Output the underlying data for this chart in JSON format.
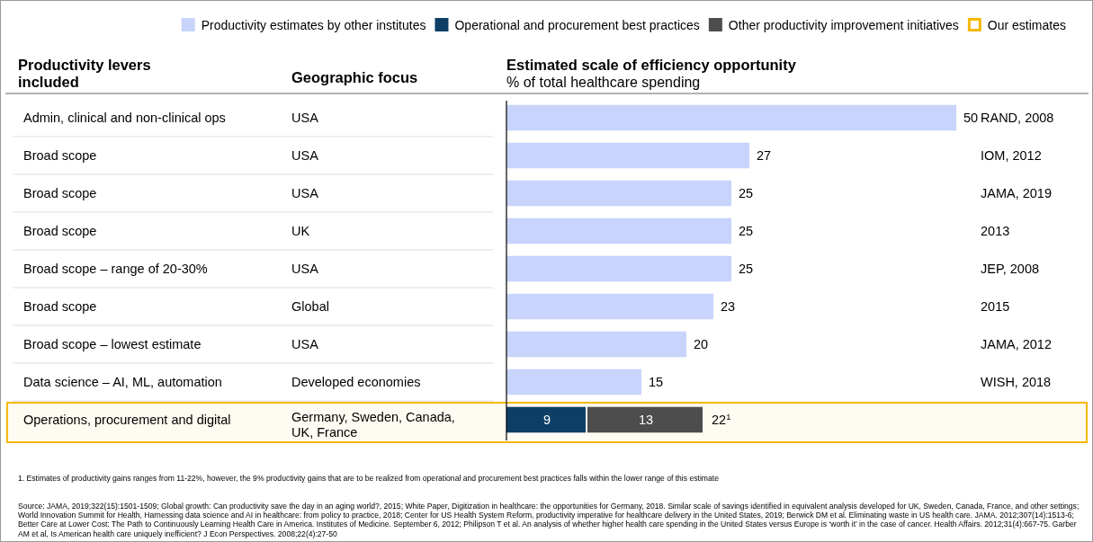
{
  "chart_data": {
    "type": "bar",
    "orientation": "horizontal",
    "stacked": true,
    "title": "Estimated scale of efficiency opportunity",
    "subtitle": "% of total healthcare spending",
    "ylabel": "Productivity levers included",
    "y2label": "Geographic focus",
    "categories": [
      "Admin, clinical and non-clinical ops",
      "Broad scope",
      "Broad scope",
      "Broad scope",
      "Broad scope – range of 20-30%",
      "Broad scope",
      "Broad scope – lowest estimate",
      "Data science – AI, ML, automation",
      "Operations, procurement and digital"
    ],
    "y2_categories": [
      "USA",
      "USA",
      "USA",
      "UK",
      "USA",
      "Global",
      "USA",
      "Developed economies",
      "Germany, Sweden, Canada, UK, France"
    ],
    "series": [
      {
        "name": "Productivity estimates by other institutes",
        "color": "#c8d4fb",
        "values": [
          50,
          27,
          25,
          25,
          25,
          23,
          20,
          15,
          null
        ]
      },
      {
        "name": "Operational and procurement best practices",
        "color": "#0d3f66",
        "values": [
          null,
          null,
          null,
          null,
          null,
          null,
          null,
          null,
          9
        ]
      },
      {
        "name": "Other productivity improvement initiatives",
        "color": "#4d4d4d",
        "values": [
          null,
          null,
          null,
          null,
          null,
          null,
          null,
          null,
          13
        ]
      }
    ],
    "data_labels": true,
    "totals": [
      null,
      null,
      null,
      null,
      null,
      null,
      null,
      null,
      "22$^{1}$"
    ],
    "xlim": [
      0,
      50
    ],
    "tick_labels": "y",
    "legend": "top",
    "bands": [
      {
        "axis": "y",
        "from": "Operations, procurement and digital",
        "to": "Operations, procurement and digital",
        "label": "Our estimates",
        "color": "#f5b800"
      }
    ],
    "annotations": [
      "RAND, 2008",
      "IOM, 2012",
      "JAMA, 2019",
      "2013",
      "JEP, 2008",
      "2015",
      "JAMA, 2012",
      "WISH, 2018",
      "1.   Estimates of productivity gains ranges from 11-22%, however, the 9% productivity gains that are to be realized from operational and procurement best practices falls within the lower range of this estimate",
      "Source: JAMA, 2019;322(15):1501-1509; Global growth: Can productivity save the day in an aging world?, 2015; White Paper, Digitization in healthcare: the opportunities for Germany, 2018. Similar scale of savings identified in equivalent analysis developed for UK, Sweden, Canada, France, and other settings; World Innovation Summit for Health, Harnessing data science and AI in healthcare: from policy to practice, 2018; Center for US Health System Reform, productivity imperative for healthcare delivery in the United States, 2019; Berwick DM et al. Eliminating waste in US health care. JAMA. 2012;307(14):1513-6; Better Care at Lower Cost: The Path to Continuously Learning Health Care in America. Institutes of Medicine. September 6, 2012; Philipson T et al. An analysis of whether higher health care spending in the United States versus Europe is ‘worth it’ in the case of cancer. Health Affairs. 2012;31(4):667-75. Garber AM et al, Is American health care uniquely inefficient? J Econ Perspectives. 2008;22(4):27-50"
    ]
  }
}
